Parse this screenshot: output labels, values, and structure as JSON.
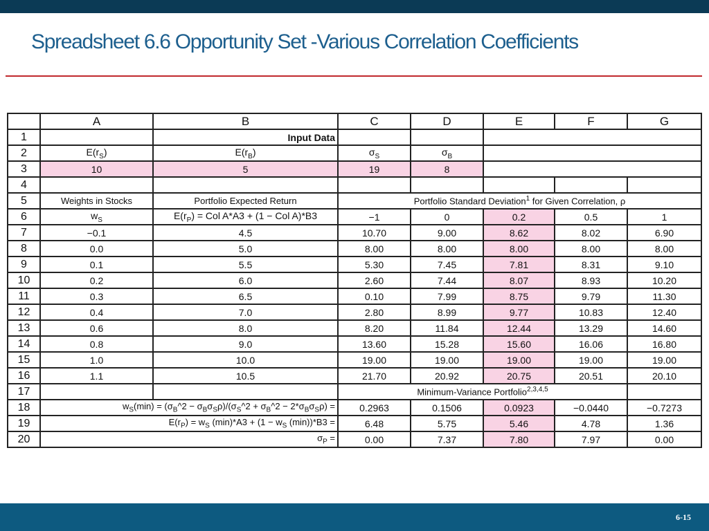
{
  "header": {
    "title": "Spreadsheet 6.6 Opportunity Set -Various Correlation Coefficients"
  },
  "table": {
    "columns": [
      "A",
      "B",
      "C",
      "D",
      "E",
      "F",
      "G"
    ],
    "rows": [
      {
        "n": "1",
        "B": "Input Data"
      },
      {
        "n": "2",
        "A": [
          "E(r",
          {
            "sub": "S"
          },
          ")"
        ],
        "B": [
          "E(r",
          {
            "sub": "B"
          },
          ")"
        ],
        "C": [
          "σ",
          {
            "sub": "S"
          }
        ],
        "D": [
          "σ",
          {
            "sub": "B"
          }
        ]
      },
      {
        "n": "3",
        "A": "10",
        "B": "5",
        "C": "19",
        "D": "8"
      },
      {
        "n": "4"
      },
      {
        "n": "5",
        "A": "Weights in Stocks",
        "B": "Portfolio Expected Return",
        "C": [
          "Portfolio Standard Deviation",
          {
            "sup": "1"
          },
          " for Given Correlation, ρ"
        ]
      },
      {
        "n": "6",
        "A": [
          "w",
          {
            "sub": "S"
          }
        ],
        "B": [
          "E(r",
          {
            "sub": "P"
          },
          ") = Col A*A3 + (1 − Col A)*B3"
        ],
        "C": "−1",
        "D": "0",
        "E": "0.2",
        "F": "0.5",
        "G": "1"
      },
      {
        "n": "7",
        "A": "−0.1",
        "B": "4.5",
        "C": "10.70",
        "D": "9.00",
        "E": "8.62",
        "F": "8.02",
        "G": "6.90"
      },
      {
        "n": "8",
        "A": "0.0",
        "B": "5.0",
        "C": "8.00",
        "D": "8.00",
        "E": "8.00",
        "F": "8.00",
        "G": "8.00"
      },
      {
        "n": "9",
        "A": "0.1",
        "B": "5.5",
        "C": "5.30",
        "D": "7.45",
        "E": "7.81",
        "F": "8.31",
        "G": "9.10"
      },
      {
        "n": "10",
        "A": "0.2",
        "B": "6.0",
        "C": "2.60",
        "D": "7.44",
        "E": "8.07",
        "F": "8.93",
        "G": "10.20"
      },
      {
        "n": "11",
        "A": "0.3",
        "B": "6.5",
        "C": "0.10",
        "D": "7.99",
        "E": "8.75",
        "F": "9.79",
        "G": "11.30"
      },
      {
        "n": "12",
        "A": "0.4",
        "B": "7.0",
        "C": "2.80",
        "D": "8.99",
        "E": "9.77",
        "F": "10.83",
        "G": "12.40"
      },
      {
        "n": "13",
        "A": "0.6",
        "B": "8.0",
        "C": "8.20",
        "D": "11.84",
        "E": "12.44",
        "F": "13.29",
        "G": "14.60"
      },
      {
        "n": "14",
        "A": "0.8",
        "B": "9.0",
        "C": "13.60",
        "D": "15.28",
        "E": "15.60",
        "F": "16.06",
        "G": "16.80"
      },
      {
        "n": "15",
        "A": "1.0",
        "B": "10.0",
        "C": "19.00",
        "D": "19.00",
        "E": "19.00",
        "F": "19.00",
        "G": "19.00"
      },
      {
        "n": "16",
        "A": "1.1",
        "B": "10.5",
        "C": "21.70",
        "D": "20.92",
        "E": "20.75",
        "F": "20.51",
        "G": "20.10"
      },
      {
        "n": "17",
        "C": [
          "Minimum-Variance Portfolio",
          {
            "sup": "2,3,4,5"
          }
        ]
      },
      {
        "n": "18",
        "A": [
          "w",
          {
            "sub": "S"
          },
          "(min) = (σ",
          {
            "sub": "B"
          },
          "^2 − σ",
          {
            "sub": "B"
          },
          "σ",
          {
            "sub": "S"
          },
          "ρ)/(σ",
          {
            "sub": "S"
          },
          "^2 + σ",
          {
            "sub": "B"
          },
          "^2 − 2*σ",
          {
            "sub": "B"
          },
          "σ",
          {
            "sub": "S"
          },
          "ρ) ="
        ],
        "C": "0.2963",
        "D": "0.1506",
        "E": "0.0923",
        "F": "−0.0440",
        "G": "−0.7273"
      },
      {
        "n": "19",
        "A": [
          "E(r",
          {
            "sub": "P"
          },
          ") = w",
          {
            "sub": "S"
          },
          " (min)*A3 + (1 − w",
          {
            "sub": "S"
          },
          " (min))*B3 ="
        ],
        "C": "6.48",
        "D": "5.75",
        "E": "5.46",
        "F": "4.78",
        "G": "1.36"
      },
      {
        "n": "20",
        "A": [
          "σ",
          {
            "sub": "P"
          },
          " ="
        ],
        "C": "0.00",
        "D": "7.37",
        "E": "7.80",
        "F": "7.97",
        "G": "0.00"
      }
    ]
  },
  "footer": {
    "page": "6-15"
  }
}
